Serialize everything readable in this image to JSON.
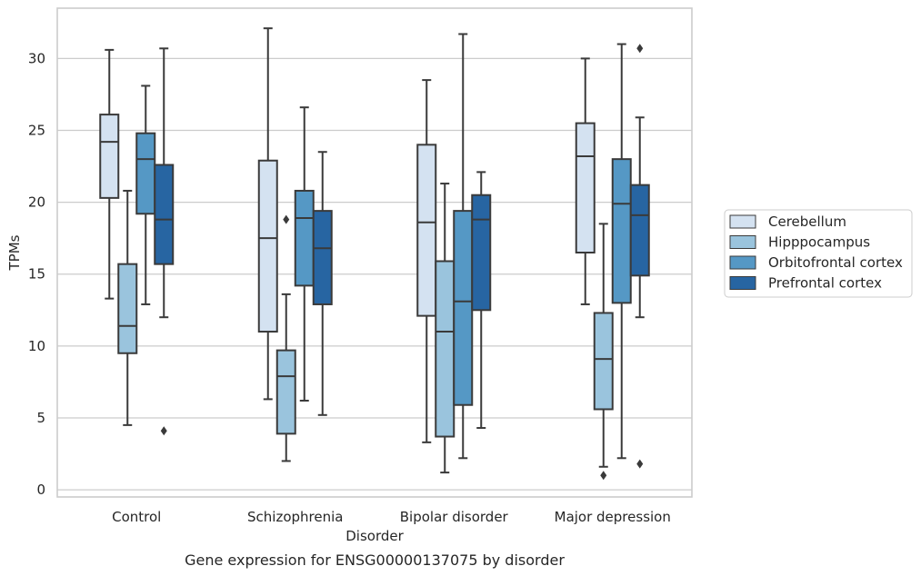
{
  "chart_data": {
    "type": "box",
    "caption": "Gene expression for ENSG00000137075 by disorder",
    "xlabel": "Disorder",
    "ylabel": "TPMs",
    "ylim": [
      -0.5,
      33.5
    ],
    "yticks": [
      0,
      5,
      10,
      15,
      20,
      25,
      30
    ],
    "grid": "horizontal",
    "legend_position": "right",
    "categories": [
      "Control",
      "Schizophrenia",
      "Bipolar disorder",
      "Major depression"
    ],
    "series": [
      {
        "name": "Cerebellum",
        "color": "#d4e2f1",
        "boxes": [
          {
            "whislo": 13.3,
            "q1": 20.3,
            "med": 24.2,
            "q3": 26.1,
            "whishi": 30.6,
            "fliers": []
          },
          {
            "whislo": 6.3,
            "q1": 11.0,
            "med": 17.5,
            "q3": 22.9,
            "whishi": 32.1,
            "fliers": []
          },
          {
            "whislo": 3.3,
            "q1": 12.1,
            "med": 18.6,
            "q3": 24.0,
            "whishi": 28.5,
            "fliers": []
          },
          {
            "whislo": 12.9,
            "q1": 16.5,
            "med": 23.2,
            "q3": 25.5,
            "whishi": 30.0,
            "fliers": []
          }
        ]
      },
      {
        "name": "Hipppocampus",
        "color": "#9ac4dd",
        "boxes": [
          {
            "whislo": 4.5,
            "q1": 9.5,
            "med": 11.4,
            "q3": 15.7,
            "whishi": 20.8,
            "fliers": []
          },
          {
            "whislo": 2.0,
            "q1": 3.9,
            "med": 7.9,
            "q3": 9.7,
            "whishi": 13.6,
            "fliers": [
              18.8
            ]
          },
          {
            "whislo": 1.2,
            "q1": 3.7,
            "med": 11.0,
            "q3": 15.9,
            "whishi": 21.3,
            "fliers": []
          },
          {
            "whislo": 1.6,
            "q1": 5.6,
            "med": 9.1,
            "q3": 12.3,
            "whishi": 18.5,
            "fliers": [
              1.0
            ]
          }
        ]
      },
      {
        "name": "Orbitofrontal cortex",
        "color": "#5598c5",
        "boxes": [
          {
            "whislo": 12.9,
            "q1": 19.2,
            "med": 23.0,
            "q3": 24.8,
            "whishi": 28.1,
            "fliers": []
          },
          {
            "whislo": 6.2,
            "q1": 14.2,
            "med": 18.9,
            "q3": 20.8,
            "whishi": 26.6,
            "fliers": []
          },
          {
            "whislo": 2.2,
            "q1": 5.9,
            "med": 13.1,
            "q3": 19.4,
            "whishi": 31.7,
            "fliers": []
          },
          {
            "whislo": 2.2,
            "q1": 13.0,
            "med": 19.9,
            "q3": 23.0,
            "whishi": 31.0,
            "fliers": []
          }
        ]
      },
      {
        "name": "Prefrontal cortex",
        "color": "#2765a2",
        "boxes": [
          {
            "whislo": 12.0,
            "q1": 15.7,
            "med": 18.8,
            "q3": 22.6,
            "whishi": 30.7,
            "fliers": [
              4.1
            ]
          },
          {
            "whislo": 5.2,
            "q1": 12.9,
            "med": 16.8,
            "q3": 19.4,
            "whishi": 23.5,
            "fliers": []
          },
          {
            "whislo": 4.3,
            "q1": 12.5,
            "med": 18.8,
            "q3": 20.5,
            "whishi": 22.1,
            "fliers": []
          },
          {
            "whislo": 12.0,
            "q1": 14.9,
            "med": 19.1,
            "q3": 21.2,
            "whishi": 25.9,
            "fliers": [
              1.8,
              30.7
            ]
          }
        ]
      }
    ]
  }
}
